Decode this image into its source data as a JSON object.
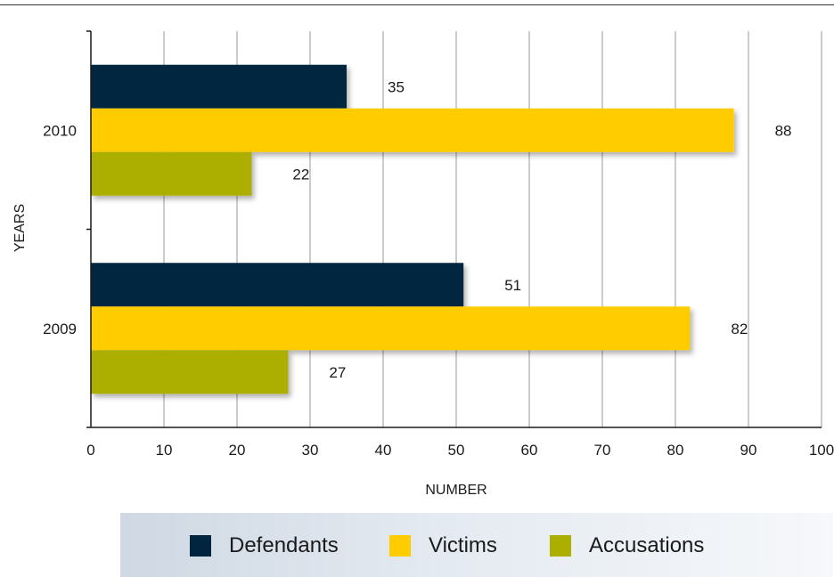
{
  "chart_data": {
    "type": "bar",
    "orientation": "horizontal",
    "categories": [
      "2010",
      "2009"
    ],
    "series": [
      {
        "name": "Defendants",
        "values": [
          35,
          51
        ],
        "color": "#02253f"
      },
      {
        "name": "Victims",
        "values": [
          88,
          82
        ],
        "color": "#ffcc00"
      },
      {
        "name": "Accusations",
        "values": [
          22,
          27
        ],
        "color": "#adaf00"
      }
    ],
    "xlabel": "NUMBER",
    "ylabel": "YEARS",
    "xlim": [
      0,
      100
    ],
    "x_ticks": [
      "0",
      "10",
      "20",
      "30",
      "40",
      "50",
      "60",
      "70",
      "80",
      "90",
      "100"
    ],
    "grid": "vertical",
    "legend_position": "bottom"
  }
}
